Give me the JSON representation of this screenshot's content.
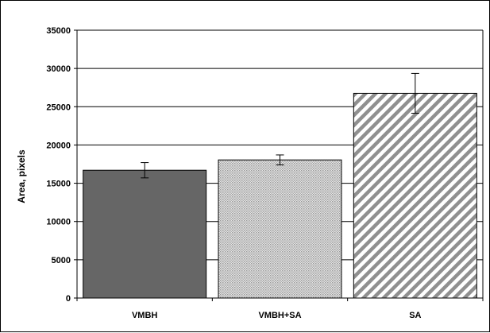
{
  "chart_data": {
    "type": "bar",
    "title": "",
    "xlabel": "",
    "ylabel": "Area, pixels",
    "ylim": [
      0,
      35000
    ],
    "yticks": [
      0,
      5000,
      10000,
      15000,
      20000,
      25000,
      30000,
      35000
    ],
    "grid": true,
    "legend": "none",
    "categories": [
      "VMBH",
      "VMBH+SA",
      "SA"
    ],
    "values": [
      16700,
      18050,
      26750
    ],
    "error": [
      1000,
      650,
      2600
    ],
    "fills": [
      "solid-dark-gray",
      "light-gray-dotted",
      "diagonal-hatch"
    ],
    "colors": {
      "dark_bar": "#666666",
      "dotted_bar": "#d0d0d0",
      "hatch_line": "#909090",
      "gridline": "#000000"
    }
  }
}
